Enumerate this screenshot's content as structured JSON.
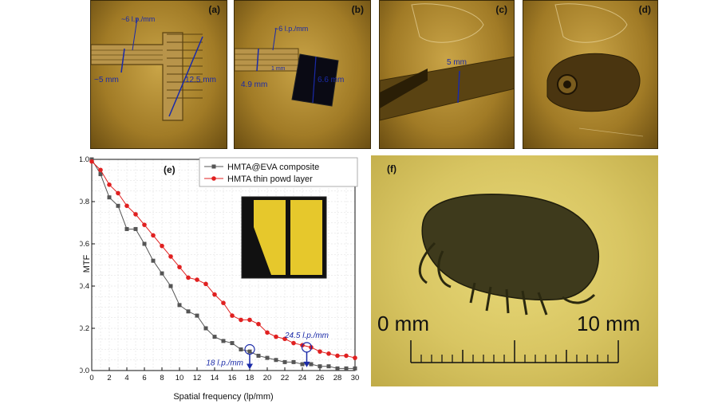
{
  "panels": {
    "a": {
      "label": "(a)",
      "anno_lp": "~6 l.p./mm",
      "anno_width": "~5 mm",
      "anno_length": "12.5 mm"
    },
    "b": {
      "label": "(b)",
      "anno_lp": "~6 l.p./mm",
      "anno_width": "4.9 mm",
      "anno_gap": "1 mm",
      "anno_square": "6.6 mm"
    },
    "c": {
      "label": "(c)",
      "anno_width": "5 mm"
    },
    "d": {
      "label": "(d)"
    },
    "f": {
      "label": "(f)",
      "scale_left": "0 mm",
      "scale_right": "10 mm"
    }
  },
  "chart_data": {
    "type": "line",
    "panel_label": "(e)",
    "xlabel": "Spatial frequency (lp/mm)",
    "ylabel": "MTF",
    "xlim": [
      0,
      30
    ],
    "ylim": [
      0,
      1.0
    ],
    "xticks": [
      "0",
      "2",
      "4",
      "6",
      "8",
      "10",
      "12",
      "14",
      "16",
      "18",
      "20",
      "22",
      "24",
      "26",
      "28",
      "30"
    ],
    "yticks": [
      "0.0",
      "0.2",
      "0.4",
      "0.6",
      "0.8",
      "1.0"
    ],
    "grid": true,
    "legend_position": "top-right",
    "series": [
      {
        "name": "HMTA@EVA composite",
        "color": "#555555",
        "marker": "square",
        "x": [
          0,
          1,
          2,
          3,
          4,
          5,
          6,
          7,
          8,
          9,
          10,
          11,
          12,
          13,
          14,
          15,
          16,
          17,
          18,
          19,
          20,
          21,
          22,
          23,
          24,
          25,
          26,
          27,
          28,
          29,
          30
        ],
        "y": [
          1.0,
          0.93,
          0.82,
          0.78,
          0.67,
          0.67,
          0.6,
          0.52,
          0.46,
          0.4,
          0.31,
          0.28,
          0.26,
          0.2,
          0.16,
          0.14,
          0.13,
          0.1,
          0.09,
          0.07,
          0.06,
          0.05,
          0.04,
          0.04,
          0.03,
          0.03,
          0.02,
          0.02,
          0.01,
          0.01,
          0.01
        ]
      },
      {
        "name": "HMTA thin powd layer",
        "color": "#e02020",
        "marker": "circle",
        "x": [
          0,
          1,
          2,
          3,
          4,
          5,
          6,
          7,
          8,
          9,
          10,
          11,
          12,
          13,
          14,
          15,
          16,
          17,
          18,
          19,
          20,
          21,
          22,
          23,
          24,
          25,
          26,
          27,
          28,
          29,
          30
        ],
        "y": [
          0.99,
          0.95,
          0.88,
          0.84,
          0.78,
          0.74,
          0.69,
          0.64,
          0.59,
          0.54,
          0.49,
          0.44,
          0.43,
          0.41,
          0.36,
          0.32,
          0.26,
          0.24,
          0.24,
          0.22,
          0.18,
          0.16,
          0.15,
          0.13,
          0.12,
          0.11,
          0.09,
          0.08,
          0.07,
          0.07,
          0.06
        ]
      }
    ],
    "annotations": [
      {
        "text": "18 l.p./mm",
        "x": 18,
        "y": 0.1
      },
      {
        "text": "24.5 l.p./mm",
        "x": 24.5,
        "y": 0.11
      }
    ]
  }
}
